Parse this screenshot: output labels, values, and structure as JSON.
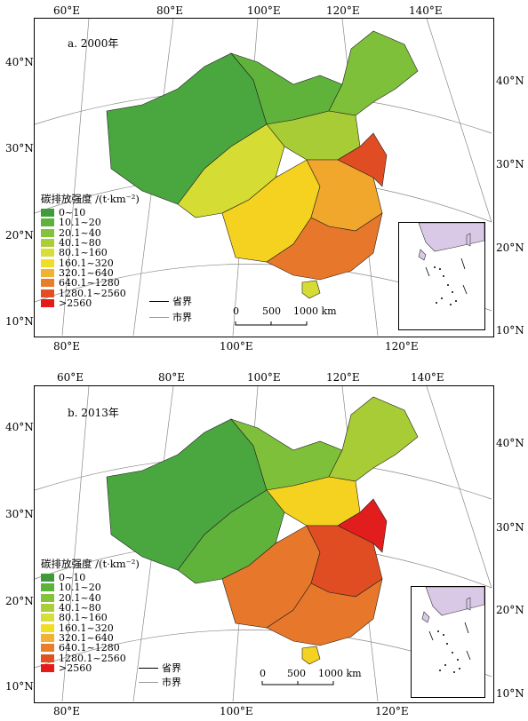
{
  "panels": [
    {
      "title": "a. 2000年",
      "top_labels": [
        "60°E",
        "80°E",
        "100°E",
        "120°E",
        "140°E"
      ],
      "bottom_labels": [
        "80°E",
        "100°E",
        "120°E"
      ],
      "left_labels": [
        "40°N",
        "30°N",
        "20°N",
        "10°N"
      ],
      "right_labels": [
        "40°N",
        "30°N",
        "20°N",
        "10°N"
      ],
      "region_fills": [
        "#4aa63f",
        "#5fb33b",
        "#7ec03a",
        "#a8cc35",
        "#d5dc33",
        "#f4d21f",
        "#f1a72c",
        "#e7772a",
        "#e04d22",
        "#e21d1d"
      ]
    },
    {
      "title": "b. 2013年",
      "top_labels": [
        "60°E",
        "80°E",
        "100°E",
        "120°E",
        "140°E"
      ],
      "bottom_labels": [
        "80°E",
        "100°E",
        "120°E"
      ],
      "left_labels": [
        "40°N",
        "30°N",
        "20°N",
        "10°N"
      ],
      "right_labels": [
        "40°N",
        "30°N",
        "20°N",
        "10°N"
      ],
      "region_fills": [
        "#4aa63f",
        "#5fb33b",
        "#7ec03a",
        "#a8cc35",
        "#d5dc33",
        "#f4d21f",
        "#f1a72c",
        "#e7772a",
        "#e04d22",
        "#e21d1d"
      ]
    }
  ],
  "legend": {
    "title": "碳排放强度 /(t·km⁻²)",
    "classes": [
      {
        "label": "0~10",
        "color": "#3f9b39"
      },
      {
        "label": "10.1~20",
        "color": "#5bb33a"
      },
      {
        "label": "20.1~40",
        "color": "#84c23c"
      },
      {
        "label": "40.1~80",
        "color": "#aacd38"
      },
      {
        "label": "80.1~160",
        "color": "#d6df39"
      },
      {
        "label": "160.1~320",
        "color": "#f3dc25"
      },
      {
        "label": "320.1~640",
        "color": "#f1b233"
      },
      {
        "label": "640.1~1280",
        "color": "#ea7d2b"
      },
      {
        "label": "1280.1~2560",
        "color": "#e14f22"
      },
      {
        "label": ">2560",
        "color": "#e51b1b"
      }
    ]
  },
  "boundaries": {
    "province": "省界",
    "city": "市界"
  },
  "scale_bar": {
    "labels": [
      "0",
      "500",
      "1000 km"
    ]
  }
}
